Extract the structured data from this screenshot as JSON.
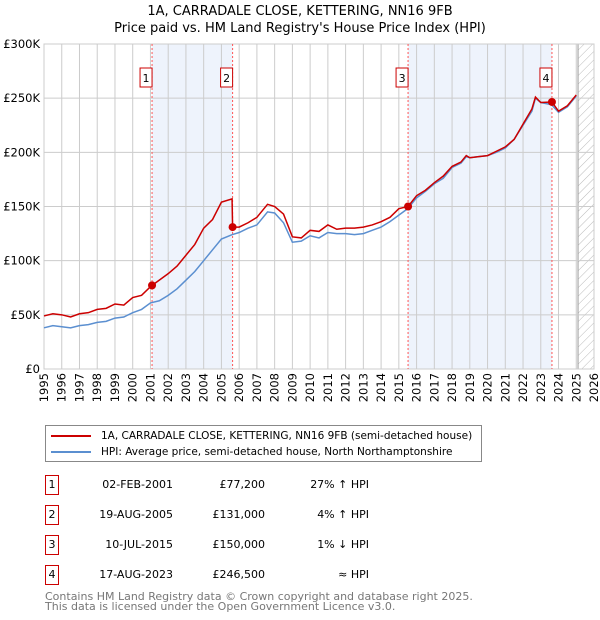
{
  "title": "1A, CARRADALE CLOSE, KETTERING, NN16 9FB",
  "subtitle": "Price paid vs. HM Land Registry's House Price Index (HPI)",
  "colors": {
    "property": "#cc0000",
    "hpi": "#5b8fd0",
    "shade": "#eef3fc"
  },
  "chart_data": {
    "type": "line",
    "title": "1A, CARRADALE CLOSE, KETTERING, NN16 9FB — Price paid vs. HM Land Registry's House Price Index (HPI)",
    "xlim": [
      1995,
      2026
    ],
    "ylim": [
      0,
      300000
    ],
    "yticks": [
      {
        "v": 0,
        "label": "£0"
      },
      {
        "v": 50000,
        "label": "£50K"
      },
      {
        "v": 100000,
        "label": "£100K"
      },
      {
        "v": 150000,
        "label": "£150K"
      },
      {
        "v": 200000,
        "label": "£200K"
      },
      {
        "v": 250000,
        "label": "£250K"
      },
      {
        "v": 300000,
        "label": "£300K"
      }
    ],
    "xticks": [
      "1995",
      "1996",
      "1997",
      "1998",
      "1999",
      "2000",
      "2001",
      "2002",
      "2003",
      "2004",
      "2005",
      "2006",
      "2007",
      "2008",
      "2009",
      "2010",
      "2011",
      "2012",
      "2013",
      "2014",
      "2015",
      "2016",
      "2017",
      "2018",
      "2019",
      "2020",
      "2021",
      "2022",
      "2023",
      "2024",
      "2025",
      "2026"
    ],
    "forecast_hatch_from": 2025.1,
    "shaded_ranges": [
      [
        2001.09,
        2005.63
      ],
      [
        2015.52,
        2023.63
      ]
    ],
    "series": [
      {
        "name": "1A, CARRADALE CLOSE, KETTERING, NN16 9FB (semi-detached house)",
        "color": "#cc0000",
        "x": [
          1995,
          1995.5,
          1996,
          1996.5,
          1997,
          1997.5,
          1998,
          1998.5,
          1999,
          1999.5,
          2000,
          2000.5,
          2001,
          2001.09,
          2001.5,
          2002,
          2002.5,
          2003,
          2003.5,
          2004,
          2004.5,
          2005,
          2005.6,
          2005.63,
          2006,
          2006.5,
          2007,
          2007.6,
          2008,
          2008.5,
          2009,
          2009.5,
          2010,
          2010.5,
          2011,
          2011.5,
          2012,
          2012.5,
          2013,
          2013.5,
          2014,
          2014.5,
          2015,
          2015.52,
          2016,
          2016.5,
          2017,
          2017.5,
          2018,
          2018.5,
          2018.8,
          2019,
          2019.5,
          2020,
          2020.5,
          2021,
          2021.5,
          2022,
          2022.5,
          2022.7,
          2023,
          2023.63,
          2024,
          2024.5,
          2025
        ],
        "y": [
          49000,
          51000,
          50000,
          48000,
          51000,
          52000,
          55000,
          56000,
          60000,
          59000,
          66000,
          68000,
          76000,
          77200,
          82000,
          88000,
          95000,
          105000,
          115000,
          130000,
          138000,
          154000,
          157000,
          131000,
          131000,
          135000,
          140000,
          152000,
          150000,
          143000,
          122000,
          121000,
          128000,
          127000,
          133000,
          129000,
          130000,
          130000,
          131000,
          133000,
          136000,
          140000,
          148000,
          150000,
          160000,
          165000,
          172000,
          178000,
          187000,
          191000,
          197000,
          195000,
          196000,
          197000,
          201000,
          205000,
          212000,
          226000,
          240000,
          251000,
          246000,
          246500,
          238000,
          243000,
          253000
        ]
      },
      {
        "name": "HPI: Average price, semi-detached house, North Northamptonshire",
        "color": "#5b8fd0",
        "x": [
          1995,
          1995.5,
          1996,
          1996.5,
          1997,
          1997.5,
          1998,
          1998.5,
          1999,
          1999.5,
          2000,
          2000.5,
          2001,
          2001.5,
          2002,
          2002.5,
          2003,
          2003.5,
          2004,
          2004.5,
          2005,
          2005.6,
          2006,
          2006.5,
          2007,
          2007.6,
          2008,
          2008.5,
          2009,
          2009.5,
          2010,
          2010.5,
          2011,
          2011.5,
          2012,
          2012.5,
          2013,
          2013.5,
          2014,
          2014.5,
          2015,
          2015.5,
          2016,
          2016.5,
          2017,
          2017.5,
          2018,
          2018.5,
          2018.8,
          2019,
          2019.5,
          2020,
          2020.5,
          2021,
          2021.5,
          2022,
          2022.5,
          2022.7,
          2023,
          2023.6,
          2024,
          2024.5,
          2025
        ],
        "y": [
          38000,
          40000,
          39000,
          38000,
          40000,
          41000,
          43000,
          44000,
          47000,
          48000,
          52000,
          55000,
          61000,
          63000,
          68000,
          74000,
          82000,
          90000,
          100000,
          110000,
          120000,
          124000,
          126000,
          130000,
          133000,
          145000,
          144000,
          135000,
          117000,
          118000,
          123000,
          121000,
          126000,
          125000,
          125000,
          124000,
          125000,
          128000,
          131000,
          136000,
          142000,
          148000,
          158000,
          164000,
          171000,
          176000,
          186000,
          190000,
          196000,
          195000,
          196000,
          197000,
          200000,
          204000,
          212000,
          225000,
          238000,
          250000,
          246000,
          244000,
          237000,
          242000,
          252000
        ]
      }
    ],
    "sales": [
      {
        "n": "1",
        "x": 2001.09,
        "y": 77200
      },
      {
        "n": "2",
        "x": 2005.63,
        "y": 131000
      },
      {
        "n": "3",
        "x": 2015.52,
        "y": 150000
      },
      {
        "n": "4",
        "x": 2023.63,
        "y": 246500
      }
    ]
  },
  "legend": {
    "property": "1A, CARRADALE CLOSE, KETTERING, NN16 9FB (semi-detached house)",
    "hpi": "HPI: Average price, semi-detached house, North Northamptonshire"
  },
  "transactions": [
    {
      "n": "1",
      "date": "02-FEB-2001",
      "price": "£77,200",
      "hpi": "27% ↑ HPI"
    },
    {
      "n": "2",
      "date": "19-AUG-2005",
      "price": "£131,000",
      "hpi": "4% ↑ HPI"
    },
    {
      "n": "3",
      "date": "10-JUL-2015",
      "price": "£150,000",
      "hpi": "1% ↓ HPI"
    },
    {
      "n": "4",
      "date": "17-AUG-2023",
      "price": "£246,500",
      "hpi": "≈ HPI"
    }
  ],
  "footer": {
    "line1": "Contains HM Land Registry data © Crown copyright and database right 2025.",
    "line2": "This data is licensed under the Open Government Licence v3.0."
  }
}
